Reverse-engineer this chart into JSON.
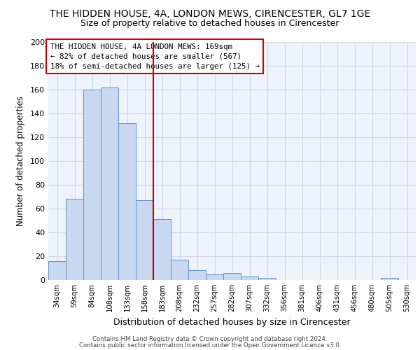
{
  "title_line1": "THE HIDDEN HOUSE, 4A, LONDON MEWS, CIRENCESTER, GL7 1GE",
  "title_line2": "Size of property relative to detached houses in Cirencester",
  "xlabel": "Distribution of detached houses by size in Cirencester",
  "ylabel": "Number of detached properties",
  "footer_line1": "Contains HM Land Registry data © Crown copyright and database right 2024.",
  "footer_line2": "Contains public sector information licensed under the Open Government Licence v3.0.",
  "bin_labels": [
    "34sqm",
    "59sqm",
    "84sqm",
    "108sqm",
    "133sqm",
    "158sqm",
    "183sqm",
    "208sqm",
    "232sqm",
    "257sqm",
    "282sqm",
    "307sqm",
    "332sqm",
    "356sqm",
    "381sqm",
    "406sqm",
    "431sqm",
    "456sqm",
    "480sqm",
    "505sqm",
    "530sqm"
  ],
  "bar_values": [
    16,
    68,
    160,
    162,
    132,
    67,
    51,
    17,
    8,
    5,
    6,
    3,
    2,
    0,
    0,
    0,
    0,
    0,
    0,
    2,
    0
  ],
  "bar_color": "#c8d8f0",
  "bar_edge_color": "#6090c8",
  "vline_x": 5.5,
  "vline_color": "#cc0000",
  "ylim": [
    0,
    200
  ],
  "yticks": [
    0,
    20,
    40,
    60,
    80,
    100,
    120,
    140,
    160,
    180,
    200
  ],
  "annotation_text": "THE HIDDEN HOUSE, 4A LONDON MEWS: 169sqm\n← 82% of detached houses are smaller (567)\n18% of semi-detached houses are larger (125) →",
  "annotation_box_color": "#ffffff",
  "annotation_box_edge_color": "#cc0000",
  "grid_color": "#d0d8e8",
  "background_color": "#eef2fb"
}
